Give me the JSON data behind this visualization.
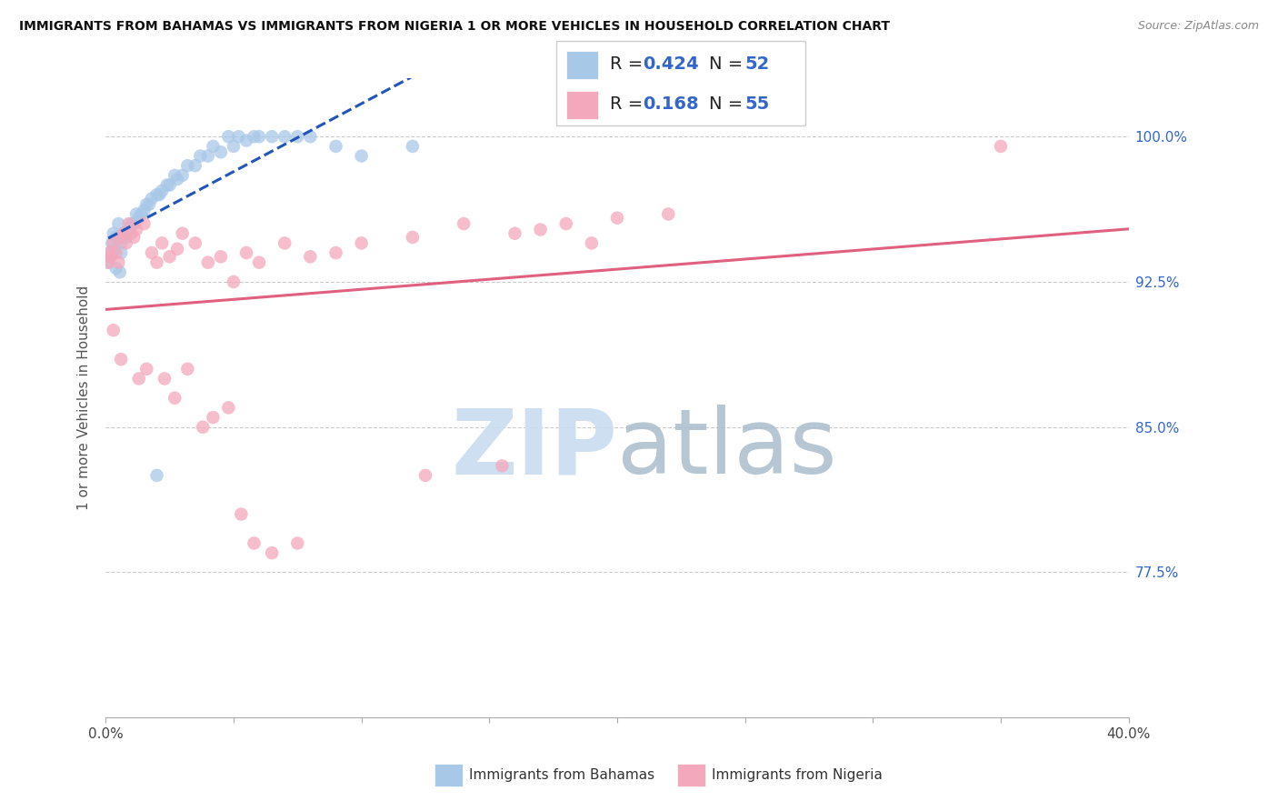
{
  "title": "IMMIGRANTS FROM BAHAMAS VS IMMIGRANTS FROM NIGERIA 1 OR MORE VEHICLES IN HOUSEHOLD CORRELATION CHART",
  "source": "Source: ZipAtlas.com",
  "ylabel": "1 or more Vehicles in Household",
  "R_bahamas": 0.424,
  "N_bahamas": 52,
  "R_nigeria": 0.168,
  "N_nigeria": 55,
  "color_bahamas": "#A8C8E8",
  "color_nigeria": "#F4A8BC",
  "color_bahamas_line": "#2255BB",
  "color_nigeria_line": "#E06080",
  "legend_label_bahamas": "Immigrants from Bahamas",
  "legend_label_nigeria": "Immigrants from Nigeria",
  "xlim": [
    0,
    40
  ],
  "ylim": [
    70,
    103
  ],
  "ytick_vals": [
    77.5,
    85.0,
    92.5,
    100.0
  ],
  "bahamas_x": [
    0.1,
    0.15,
    0.2,
    0.25,
    0.3,
    0.35,
    0.4,
    0.5,
    0.55,
    0.6,
    0.7,
    0.8,
    0.9,
    1.0,
    1.2,
    1.3,
    1.5,
    1.6,
    1.8,
    2.0,
    2.2,
    2.5,
    2.8,
    3.0,
    3.5,
    4.0,
    4.5,
    5.0,
    5.5,
    6.0,
    0.4,
    0.6,
    1.1,
    1.4,
    1.7,
    2.1,
    2.4,
    2.7,
    3.2,
    3.7,
    4.2,
    4.8,
    5.2,
    5.8,
    6.5,
    7.0,
    7.5,
    8.0,
    9.0,
    10.0,
    12.0,
    2.0
  ],
  "bahamas_y": [
    93.5,
    94.0,
    93.8,
    94.5,
    95.0,
    94.2,
    94.8,
    95.5,
    93.0,
    94.5,
    95.0,
    94.8,
    95.2,
    95.5,
    96.0,
    95.8,
    96.2,
    96.5,
    96.8,
    97.0,
    97.2,
    97.5,
    97.8,
    98.0,
    98.5,
    99.0,
    99.2,
    99.5,
    99.8,
    100.0,
    93.2,
    94.0,
    95.5,
    96.0,
    96.5,
    97.0,
    97.5,
    98.0,
    98.5,
    99.0,
    99.5,
    100.0,
    100.0,
    100.0,
    100.0,
    100.0,
    100.0,
    100.0,
    99.5,
    99.0,
    99.5,
    82.5
  ],
  "nigeria_x": [
    0.1,
    0.15,
    0.2,
    0.3,
    0.4,
    0.5,
    0.6,
    0.7,
    0.8,
    0.9,
    1.0,
    1.1,
    1.2,
    1.5,
    1.8,
    2.0,
    2.2,
    2.5,
    2.8,
    3.0,
    3.5,
    4.0,
    4.5,
    5.0,
    5.5,
    6.0,
    7.0,
    8.0,
    9.0,
    10.0,
    12.0,
    14.0,
    16.0,
    17.0,
    18.0,
    20.0,
    22.0,
    35.0,
    0.3,
    0.6,
    1.3,
    1.6,
    2.3,
    2.7,
    3.2,
    3.8,
    4.2,
    4.8,
    5.3,
    5.8,
    6.5,
    7.5,
    12.5,
    15.5,
    19.0
  ],
  "nigeria_y": [
    93.5,
    94.0,
    93.8,
    94.5,
    94.0,
    93.5,
    94.8,
    95.0,
    94.5,
    95.5,
    95.0,
    94.8,
    95.2,
    95.5,
    94.0,
    93.5,
    94.5,
    93.8,
    94.2,
    95.0,
    94.5,
    93.5,
    93.8,
    92.5,
    94.0,
    93.5,
    94.5,
    93.8,
    94.0,
    94.5,
    94.8,
    95.5,
    95.0,
    95.2,
    95.5,
    95.8,
    96.0,
    99.5,
    90.0,
    88.5,
    87.5,
    88.0,
    87.5,
    86.5,
    88.0,
    85.0,
    85.5,
    86.0,
    80.5,
    79.0,
    78.5,
    79.0,
    82.5,
    83.0,
    94.5
  ]
}
